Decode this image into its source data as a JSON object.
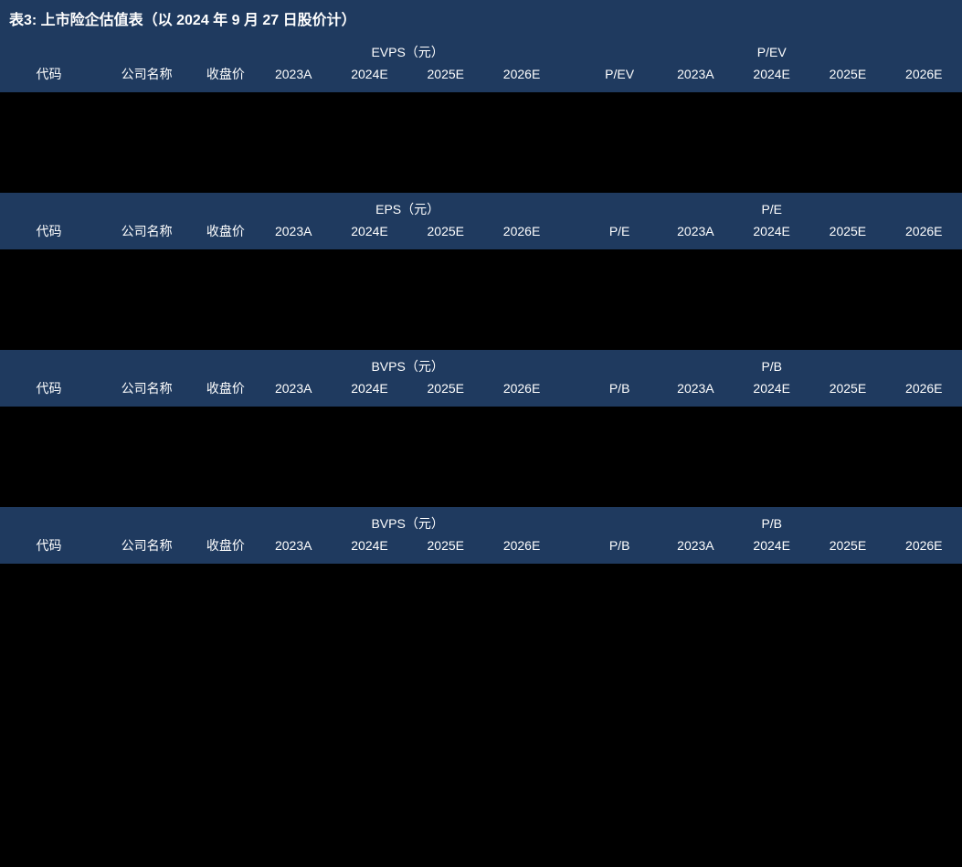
{
  "title": "表3:  上市险企估值表（以 2024 年 9 月 27 日股价计）",
  "header_bg": "#1f3a5f",
  "body_bg": "#000000",
  "text_color": "#ffffff",
  "font_size_title": 16,
  "font_size_body": 14,
  "common_cols": {
    "code": "代码",
    "name": "公司名称",
    "price": "收盘价",
    "y2023A": "2023A",
    "y2024E": "2024E",
    "y2025E": "2025E",
    "y2026E": "2026E"
  },
  "sections": [
    {
      "group_left": "EVPS（元）",
      "group_right": "P/EV",
      "ratio_label": "P/EV"
    },
    {
      "group_left": "EPS（元）",
      "group_right": "P/E",
      "ratio_label": "P/E"
    },
    {
      "group_left": "BVPS（元）",
      "group_right": "P/B",
      "ratio_label": "P/B"
    },
    {
      "group_left": "BVPS（元）",
      "group_right": "P/B",
      "ratio_label": "P/B"
    }
  ]
}
